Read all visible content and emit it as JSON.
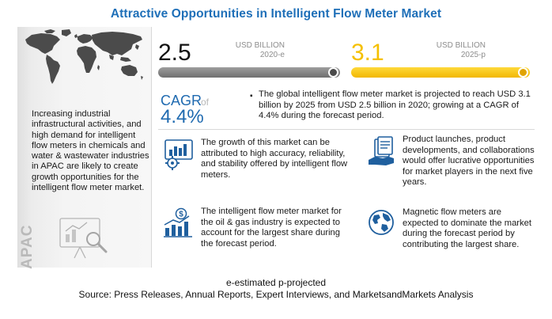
{
  "title": "Attractive Opportunities in Intelligent Flow Meter Market",
  "left_panel": {
    "text": "Increasing industrial infrastructural activities, and high demand for intelligent flow meters in chemicals and water & wastewater industries in APAC are likely to create growth opportunities for the intelligent flow meter market.",
    "region_label": "APAC"
  },
  "market_2020": {
    "value": "2.5",
    "unit": "USD BILLION",
    "period": "2020-e"
  },
  "market_2025": {
    "value": "3.1",
    "unit": "USD BILLION",
    "period": "2025-p"
  },
  "cagr": {
    "label": "CAGR",
    "of": "of",
    "value": "4.4%",
    "bullet": "▪",
    "text": "The global intelligent flow meter market is projected to reach USD 3.1 billion by 2025 from USD 2.5 billion in 2020; growing at a CAGR of 4.4% during the forecast period."
  },
  "insights": [
    {
      "text": "The growth of this market can be attributed to high accuracy, reliability, and stability offered by intelligent flow meters."
    },
    {
      "text": "Product launches, product developments, and collaborations would offer lucrative opportunities for market players in the next five years."
    },
    {
      "text": "The intelligent flow meter market for the oil & gas industry is expected to account for the largest share during the forecast period."
    },
    {
      "text": "Magnetic flow meters are expected to dominate the market during the forecast period by contributing the largest share."
    }
  ],
  "footnote": "e-estimated p-projected",
  "source": "Source: Press Releases, Annual Reports, Expert Interviews, and MarketsandMarkets Analysis",
  "colors": {
    "title": "#1e6fb8",
    "cagr": "#1f6ab0",
    "bar_2025": "#f5c000",
    "bar_2020": "#7a7a7a",
    "map": "#4b4b4b"
  }
}
